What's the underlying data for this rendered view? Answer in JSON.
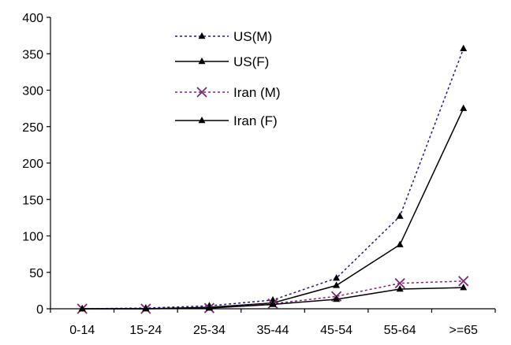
{
  "chart_data": {
    "type": "line",
    "categories": [
      "0-14",
      "15-24",
      "25-34",
      "35-44",
      "45-54",
      "55-64",
      ">=65"
    ],
    "ylim": [
      0,
      400
    ],
    "yticks": [
      0,
      50,
      100,
      150,
      200,
      250,
      300,
      350,
      400
    ],
    "grid": false,
    "legend_position": "top-center",
    "series": [
      {
        "name": "US(M)",
        "values": [
          0,
          1,
          4,
          12,
          42,
          127,
          357
        ],
        "color": "#1f1f7a",
        "dash": "dotted",
        "marker": "triangle"
      },
      {
        "name": "US(F)",
        "values": [
          0,
          0,
          2,
          8,
          32,
          88,
          275
        ],
        "color": "#000000",
        "dash": "solid",
        "marker": "triangle"
      },
      {
        "name": "Iran (M)",
        "values": [
          0,
          0,
          1,
          7,
          17,
          35,
          38
        ],
        "color": "#7a2a6e",
        "dash": "dotted",
        "marker": "x"
      },
      {
        "name": "Iran (F)",
        "values": [
          0,
          0,
          1,
          6,
          13,
          27,
          29
        ],
        "color": "#000000",
        "dash": "solid",
        "marker": "triangle"
      }
    ]
  }
}
